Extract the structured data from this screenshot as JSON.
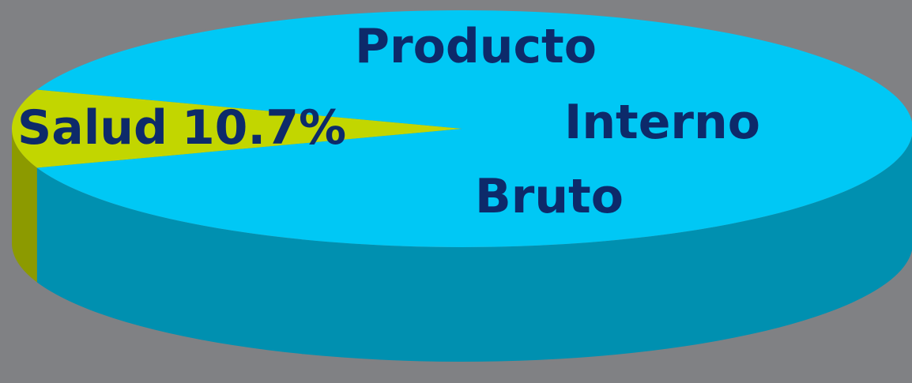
{
  "chart_data": {
    "type": "pie3d",
    "categories": [
      "Salud",
      "Producto Interno Bruto"
    ],
    "values": [
      10.7,
      89.3
    ],
    "value_labels": [
      "10.7%",
      null
    ],
    "colors": [
      "#c2d600",
      "#00c8f5"
    ]
  }
}
